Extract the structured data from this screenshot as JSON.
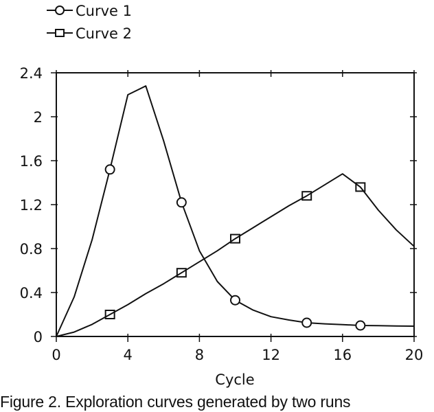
{
  "chart_data": {
    "type": "line",
    "title": "",
    "xlabel": "Cycle",
    "ylabel": "",
    "xlim": [
      0,
      20
    ],
    "ylim": [
      0,
      2.4
    ],
    "xticks": [
      0,
      4,
      8,
      12,
      16,
      20
    ],
    "xtick_labels": [
      "0",
      "4",
      "8",
      "12",
      "16",
      "20"
    ],
    "yticks": [
      0,
      0.4,
      0.8,
      1.2,
      1.6,
      2.0,
      2.4
    ],
    "ytick_labels": [
      "0",
      "0.4",
      "0.8",
      "1.2",
      "1.6",
      "2",
      "2.4"
    ],
    "grid": false,
    "legend_position": "top-left, above plot",
    "series": [
      {
        "name": "Curve 1",
        "marker": "circle",
        "x": [
          0,
          1,
          2,
          3,
          4,
          5,
          6,
          7,
          8,
          9,
          10,
          11,
          12,
          13,
          14,
          15,
          16,
          17,
          18,
          19,
          20
        ],
        "values": [
          0,
          0.36,
          0.88,
          1.52,
          2.2,
          2.28,
          1.78,
          1.22,
          0.78,
          0.5,
          0.33,
          0.24,
          0.18,
          0.15,
          0.125,
          0.115,
          0.108,
          0.1,
          0.098,
          0.095,
          0.094
        ],
        "marker_x": [
          3,
          7,
          10,
          14,
          17
        ]
      },
      {
        "name": "Curve 2",
        "marker": "square",
        "x": [
          0,
          1,
          2,
          3,
          4,
          5,
          6,
          7,
          8,
          9,
          10,
          11,
          12,
          13,
          14,
          15,
          16,
          17,
          18,
          19,
          20
        ],
        "values": [
          0,
          0.04,
          0.11,
          0.2,
          0.29,
          0.39,
          0.48,
          0.58,
          0.68,
          0.78,
          0.89,
          0.99,
          1.09,
          1.19,
          1.28,
          1.38,
          1.48,
          1.36,
          1.15,
          0.97,
          0.82
        ],
        "marker_x": [
          3,
          7,
          10,
          14,
          17
        ]
      }
    ]
  },
  "legend": {
    "items": [
      {
        "label": "Curve 1",
        "marker": "circle"
      },
      {
        "label": "Curve 2",
        "marker": "square"
      }
    ]
  },
  "axes": {
    "xlabel": "Cycle"
  },
  "caption": "Figure 2. Exploration curves generated by two runs"
}
